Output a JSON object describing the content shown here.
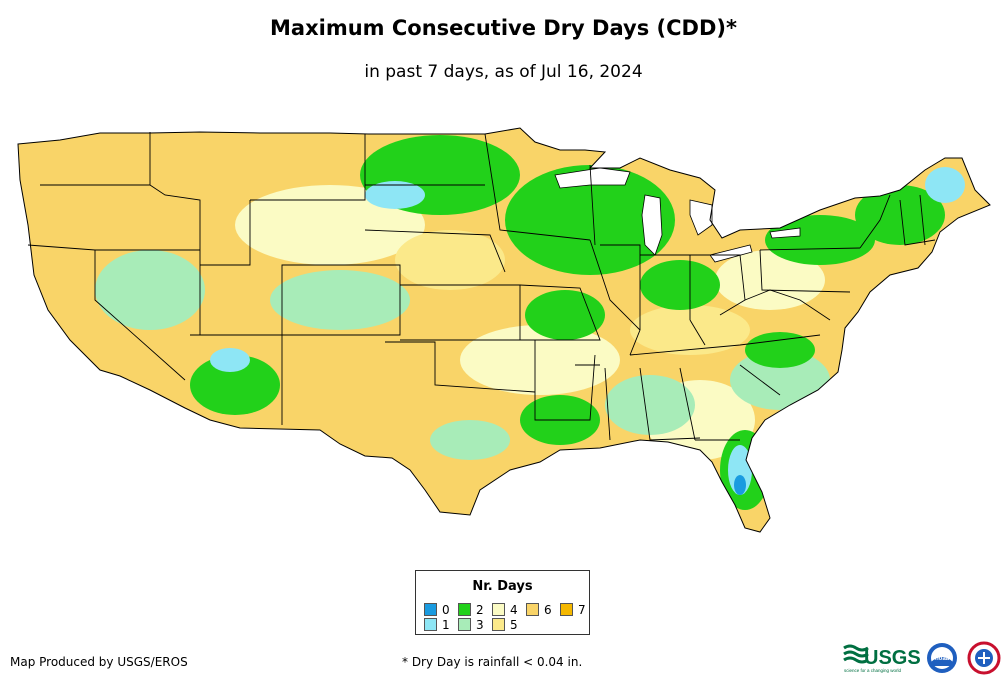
{
  "title": "Maximum Consecutive Dry Days (CDD)*",
  "subtitle": "in past 7 days, as of Jul 16, 2024",
  "legend": {
    "title": "Nr. Days",
    "items": [
      {
        "label": "0",
        "color": "#1a9be0"
      },
      {
        "label": "1",
        "color": "#8ee6f5"
      },
      {
        "label": "2",
        "color": "#22d11a"
      },
      {
        "label": "3",
        "color": "#a8ecb8"
      },
      {
        "label": "4",
        "color": "#fbfbc4"
      },
      {
        "label": "5",
        "color": "#fbe98a"
      },
      {
        "label": "6",
        "color": "#f9d468"
      },
      {
        "label": "7",
        "color": "#f5b800"
      }
    ]
  },
  "credit": "Map Produced by USGS/EROS",
  "footnote": "* Dry Day is rainfall < 0.04 in.",
  "logos": {
    "usgs": "USGS",
    "usgs_tagline": "science for a changing world",
    "noaa": "noaa"
  }
}
